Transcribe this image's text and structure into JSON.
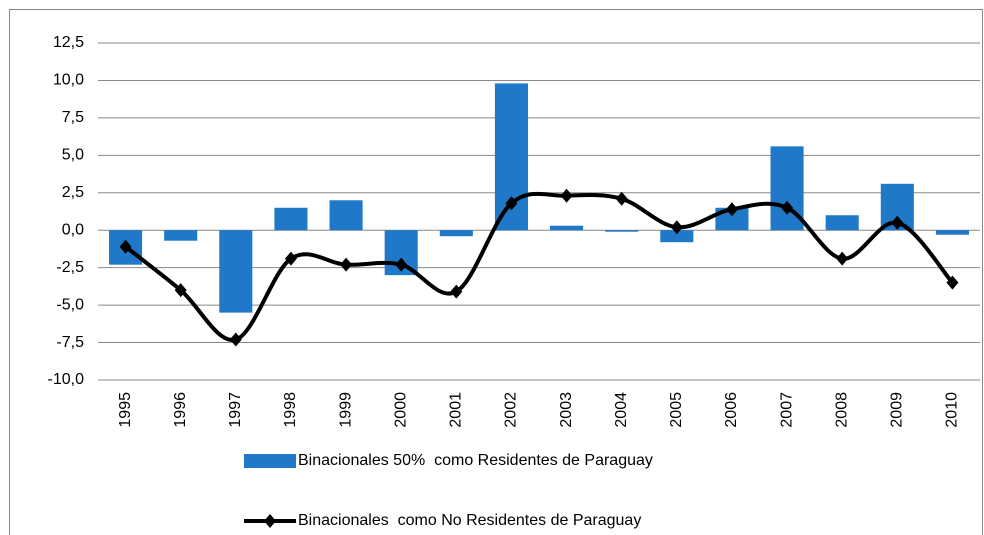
{
  "chart_data": {
    "type": "bar_line",
    "categories": [
      "1995",
      "1996",
      "1997",
      "1998",
      "1999",
      "2000",
      "2001",
      "2002",
      "2003",
      "2004",
      "2005",
      "2006",
      "2007",
      "2008",
      "2009",
      "2010"
    ],
    "series": [
      {
        "name": "Binacionales 50%  como Residentes de Paraguay",
        "type": "bar",
        "color": "#1f78c8",
        "values": [
          -2.3,
          -0.7,
          -5.5,
          1.5,
          2.0,
          -3.0,
          -0.4,
          9.8,
          0.3,
          -0.1,
          -0.8,
          1.5,
          5.6,
          1.0,
          3.1,
          -0.3
        ]
      },
      {
        "name": "Binacionales  como No Residentes de Paraguay",
        "type": "line",
        "color": "#000000",
        "values": [
          -1.1,
          -4.0,
          -7.3,
          -1.9,
          -2.3,
          -2.3,
          -4.1,
          1.8,
          2.3,
          2.1,
          0.2,
          1.4,
          1.5,
          -1.9,
          0.5,
          -3.5
        ]
      }
    ],
    "ylim": [
      -10,
      12.5
    ],
    "yticks": [
      {
        "value": -10,
        "label": "-10,0"
      },
      {
        "value": -7.5,
        "label": "-7,5"
      },
      {
        "value": -5,
        "label": "-5,0"
      },
      {
        "value": -2.5,
        "label": "-2,5"
      },
      {
        "value": 0,
        "label": "0,0"
      },
      {
        "value": 2.5,
        "label": "2,5"
      },
      {
        "value": 5,
        "label": "5,0"
      },
      {
        "value": 7.5,
        "label": "7,5"
      },
      {
        "value": 10,
        "label": "10,0"
      },
      {
        "value": 12.5,
        "label": "12,5"
      }
    ],
    "grid": true,
    "legend": "bottom"
  }
}
